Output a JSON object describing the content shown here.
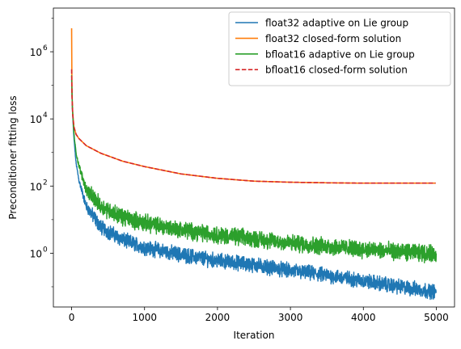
{
  "chart_data": {
    "type": "line",
    "title": "",
    "xlabel": "Iteration",
    "ylabel": "Preconditioner fitting loss",
    "yscale": "log",
    "xlim": [
      -250,
      5250
    ],
    "ylim": [
      0.025,
      20000000
    ],
    "xticks": [
      0,
      1000,
      2000,
      3000,
      4000,
      5000
    ],
    "xtick_labels": [
      "0",
      "1000",
      "2000",
      "3000",
      "4000",
      "5000"
    ],
    "yticks": [
      1,
      100,
      10000,
      1000000
    ],
    "ytick_labels": [
      "10",
      "10",
      "10",
      "10"
    ],
    "ytick_exponents": [
      "0",
      "2",
      "4",
      "6"
    ],
    "grid": false,
    "legend_position": "top-right",
    "series": [
      {
        "name": "float32 adaptive on Lie group",
        "color": "#1f77b4",
        "style": "solid",
        "noise": 0.35,
        "x": [
          0,
          10,
          30,
          60,
          100,
          200,
          400,
          700,
          1000,
          1500,
          2000,
          2500,
          3000,
          3500,
          4000,
          4500,
          5000
        ],
        "y": [
          150000,
          20000,
          3000,
          500,
          150,
          25,
          6,
          2.5,
          1.5,
          0.9,
          0.6,
          0.45,
          0.3,
          0.22,
          0.15,
          0.1,
          0.07
        ]
      },
      {
        "name": "float32 closed-form solution",
        "color": "#ff7f0e",
        "style": "solid",
        "noise": 0,
        "x": [
          0,
          5,
          15,
          30,
          60,
          100,
          200,
          400,
          700,
          1000,
          1500,
          2000,
          2500,
          3000,
          3500,
          4000,
          4500,
          5000
        ],
        "y": [
          5000000,
          60000,
          15000,
          6000,
          3500,
          2600,
          1600,
          950,
          550,
          380,
          230,
          170,
          140,
          130,
          125,
          122,
          122,
          122
        ]
      },
      {
        "name": "bfloat16 adaptive on Lie group",
        "color": "#2ca02c",
        "style": "solid",
        "noise": 0.4,
        "x": [
          0,
          10,
          30,
          60,
          100,
          200,
          400,
          700,
          1000,
          1500,
          2000,
          2500,
          3000,
          3500,
          4000,
          4500,
          5000
        ],
        "y": [
          200000,
          25000,
          4000,
          1000,
          400,
          80,
          25,
          12,
          8,
          5,
          3.5,
          2.7,
          2,
          1.6,
          1.3,
          1.1,
          0.95
        ]
      },
      {
        "name": "bfloat16 closed-form solution",
        "color": "#d62728",
        "style": "dashed",
        "noise": 0,
        "x": [
          0,
          5,
          15,
          30,
          60,
          100,
          200,
          400,
          700,
          1000,
          1500,
          2000,
          2500,
          3000,
          3500,
          4000,
          4500,
          5000
        ],
        "y": [
          300000,
          50000,
          14000,
          6000,
          3500,
          2600,
          1600,
          950,
          550,
          380,
          230,
          170,
          140,
          130,
          125,
          122,
          122,
          122
        ]
      }
    ]
  }
}
